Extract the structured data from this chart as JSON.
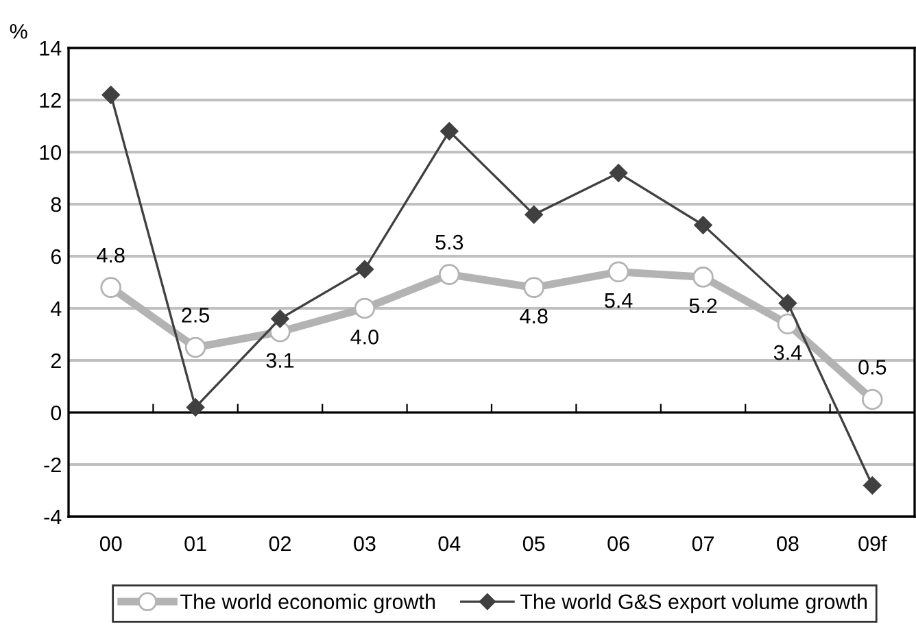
{
  "chart_data": {
    "type": "line",
    "ylabel": "%",
    "categories": [
      "00",
      "01",
      "02",
      "03",
      "04",
      "05",
      "06",
      "07",
      "08",
      "09f"
    ],
    "series": [
      {
        "name": "The world economic growth",
        "color": "#b3b3b3",
        "marker": "circle",
        "values": [
          4.8,
          2.5,
          3.1,
          4.0,
          5.3,
          4.8,
          5.4,
          5.2,
          3.4,
          0.5
        ],
        "value_labels": [
          "4.8",
          "2.5",
          "3.1",
          "4.0",
          "5.3",
          "4.8",
          "5.4",
          "5.2",
          "3.4",
          "0.5"
        ]
      },
      {
        "name": "The world G&S export volume growth",
        "color": "#404040",
        "marker": "diamond",
        "values": [
          12.2,
          0.2,
          3.6,
          5.5,
          10.8,
          7.6,
          9.2,
          7.2,
          4.2,
          -2.8
        ]
      }
    ],
    "ylim": [
      -4,
      14
    ],
    "yticks": [
      -4,
      -2,
      0,
      2,
      4,
      6,
      8,
      10,
      12,
      14
    ],
    "grid": "y",
    "legend": "bottom",
    "line_style": "solid"
  }
}
